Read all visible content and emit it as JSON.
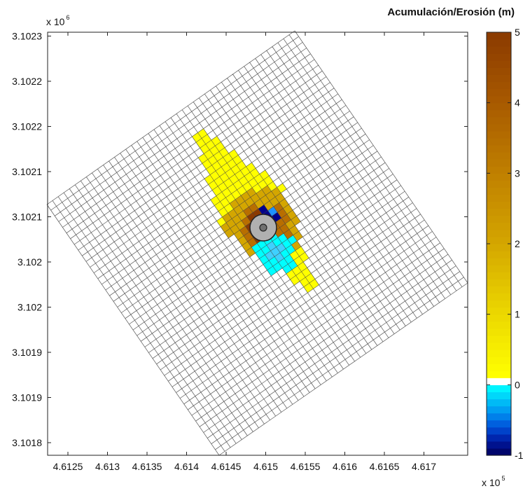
{
  "chart_data": {
    "type": "heatmap",
    "title": "",
    "xlabel": "",
    "ylabel": "",
    "x_tick_labels": [
      "4.6125",
      "4.613",
      "4.6135",
      "4.614",
      "4.6145",
      "4.615",
      "4.6155",
      "4.616",
      "4.6165",
      "4.617"
    ],
    "y_tick_labels": [
      "3.1018",
      "3.1019",
      "3.1019",
      "3.102",
      "3.102",
      "3.1021",
      "3.1021",
      "3.1022",
      "3.1022",
      "3.1023"
    ],
    "x_exponent": {
      "base": "x 10",
      "power": "5"
    },
    "y_exponent": {
      "base": "x 10",
      "power": "6"
    },
    "xlim": [
      461245,
      461725
    ],
    "colorbar": {
      "title": "Acumulación/Erosión (m)",
      "range": [
        -1,
        5
      ],
      "tick_labels": [
        "-1",
        "0",
        "1",
        "2",
        "3",
        "4",
        "5"
      ],
      "colors": {
        "erosion_deep": "#00008b",
        "erosion_mid": "#1e90ff",
        "erosion_shallow": "#00ffff",
        "zero": "#ffffff",
        "accum_low": "#ffff00",
        "accum_mid": "#d4a600",
        "accum_high": "#b86e00",
        "accum_max": "#8b3a00"
      }
    },
    "grid": {
      "mesh": "rotated structured grid",
      "line_color": "#555555",
      "cells_i": 44,
      "cells_j": 44
    },
    "field": {
      "accumulation_plume_max_m": 1.2,
      "accumulation_near_pile_max_m": 3.6,
      "erosion_scour_min_m": -0.9,
      "plume_direction": "NW-SE along pile wake"
    },
    "structure": {
      "name": "pile",
      "fill": "#b0b0b0",
      "core_fill": "#707070"
    }
  }
}
